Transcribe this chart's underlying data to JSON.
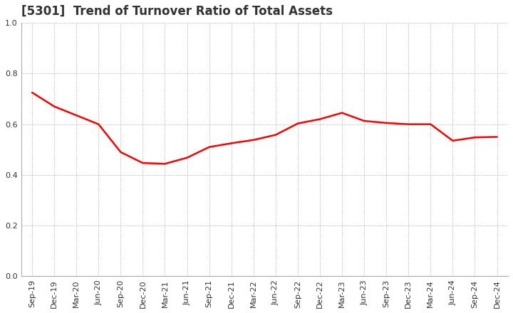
{
  "title": "[5301]  Trend of Turnover Ratio of Total Assets",
  "x_labels": [
    "Sep-19",
    "Dec-19",
    "Mar-20",
    "Jun-20",
    "Sep-20",
    "Dec-20",
    "Mar-21",
    "Jun-21",
    "Sep-21",
    "Dec-21",
    "Mar-22",
    "Jun-22",
    "Sep-22",
    "Dec-22",
    "Mar-23",
    "Jun-23",
    "Sep-23",
    "Dec-23",
    "Mar-24",
    "Jun-24",
    "Sep-24",
    "Dec-24"
  ],
  "y_values": [
    0.725,
    0.67,
    0.635,
    0.6,
    0.49,
    0.447,
    0.444,
    0.468,
    0.51,
    0.525,
    0.538,
    0.558,
    0.603,
    0.62,
    0.645,
    0.613,
    0.605,
    0.6,
    0.6,
    0.535,
    0.548,
    0.55
  ],
  "line_color": "#FF0000",
  "line_width": 1.8,
  "ylim": [
    0.0,
    1.0
  ],
  "yticks": [
    0.0,
    0.2,
    0.4,
    0.6,
    0.8,
    1.0
  ],
  "background_color": "#FFFFFF",
  "plot_bg_color": "#FFFFFF",
  "grid_color": "#999999",
  "title_fontsize": 12,
  "tick_fontsize": 8,
  "title_color": "#333333"
}
